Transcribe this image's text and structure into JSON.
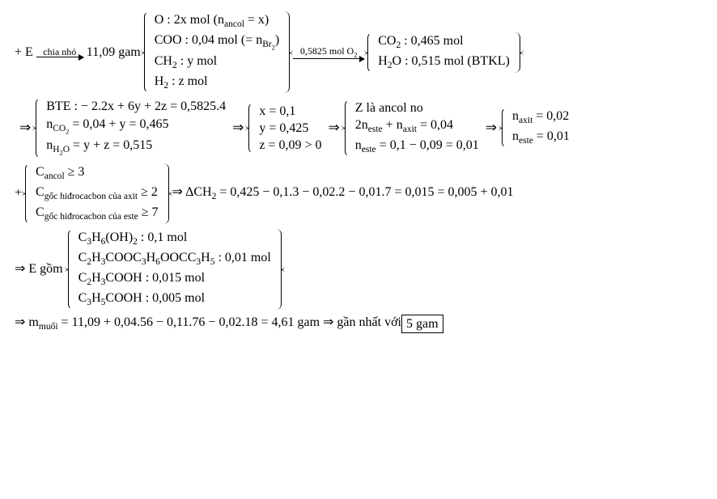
{
  "line1": {
    "lead": "+ E",
    "arrow1_label": "chia nhỏ",
    "arrow1_w": 58,
    "mass": "11,09 gam",
    "g1": [
      "O : 2x mol (n<sub>ancol</sub> = x)",
      "COO : 0,04 mol (= n<sub>Br<sub>2</sub></sub>)",
      "CH<sub>2</sub> : y mol",
      "H<sub>2</sub> : z mol"
    ],
    "arrow2_label": "0,5825 mol O<sub>2</sub>",
    "arrow2_w": 88,
    "g2": [
      "CO<sub>2</sub> : 0,465 mol",
      "H<sub>2</sub>O : 0,515 mol (BTKL)"
    ]
  },
  "line2": {
    "g1": [
      "BTE : − 2.2x + 6y + 2z = 0,5825.4",
      "n<sub>CO<sub>2</sub></sub> = 0,04 + y = 0,465",
      "n<sub>H<sub>2</sub>O</sub> = y + z = 0,515"
    ],
    "g2": [
      "x = 0,1",
      "y = 0,425",
      "z = 0,09 > 0"
    ],
    "g3": [
      "Z là ancol no",
      "2n<sub>este</sub> + n<sub>axit</sub> = 0,04",
      "n<sub>este</sub> = 0,1 − 0,09 = 0,01"
    ],
    "g4": [
      "n<sub>axit</sub> = 0,02",
      "n<sub>este</sub> = 0,01"
    ]
  },
  "line3": {
    "lead": "+",
    "g1": [
      "C<sub>ancol</sub> ≥ 3",
      "C<sub>gốc hiđrocacbon của axit</sub> ≥ 2",
      "C<sub>gốc hiđrocacbon của este</sub> ≥ 7"
    ],
    "tail": "⇒ ΔCH<sub>2</sub> = 0,425 − 0,1.3 − 0,02.2 − 0,01.7 = 0,015 = 0,005 + 0,01"
  },
  "line4": {
    "lead": "⇒ E gồm",
    "g1": [
      "C<sub>3</sub>H<sub>6</sub>(OH)<sub>2</sub> : 0,1 mol",
      "C<sub>2</sub>H<sub>3</sub>COOC<sub>3</sub>H<sub>6</sub>OOCC<sub>3</sub>H<sub>5</sub> : 0,01 mol",
      "C<sub>2</sub>H<sub>3</sub>COOH : 0,015 mol",
      "C<sub>3</sub>H<sub>5</sub>COOH : 0,005 mol"
    ]
  },
  "line5": {
    "text": "⇒ m<sub>muối</sub> = 11,09 + 0,04.56 − 0,11.76 − 0,02.18 = 4,61 gam ⇒ gần nhất với ",
    "boxed": "5 gam"
  }
}
